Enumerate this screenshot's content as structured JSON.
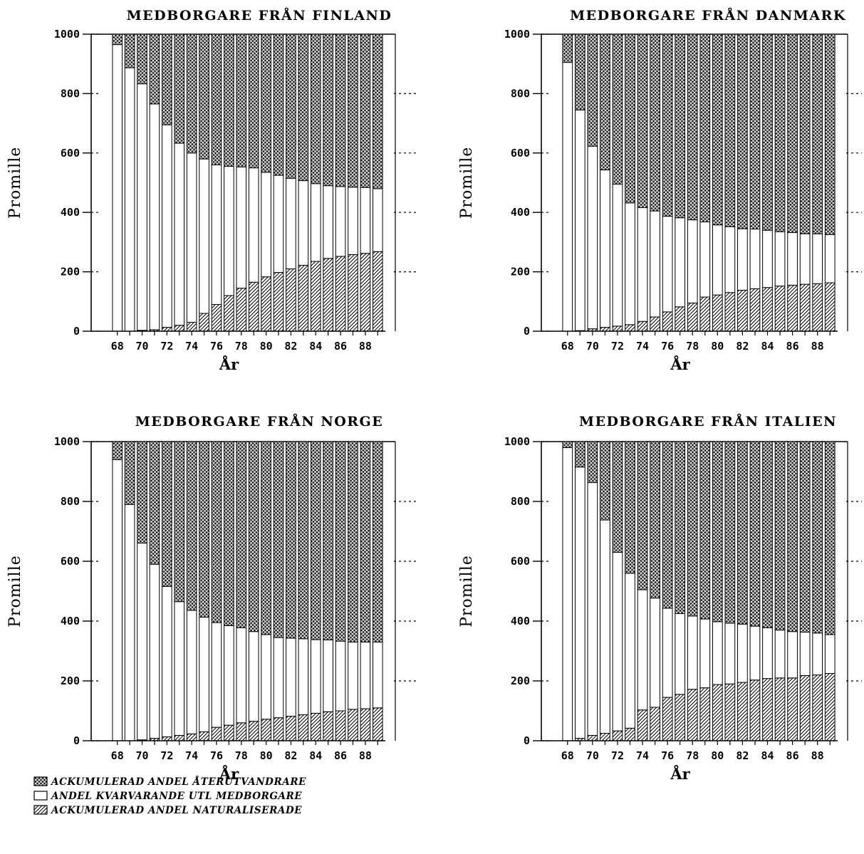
{
  "legend": {
    "items": [
      {
        "key": "returned",
        "label": "ACKUMULERAD ANDEL ÅTERUTVANDRARE",
        "pattern": "crosshatch"
      },
      {
        "key": "remaining",
        "label": "ANDEL KVARVARANDE UTL MEDBORGARE",
        "pattern": "white"
      },
      {
        "key": "naturalized",
        "label": "ACKUMULERAD ANDEL NATURALISERADE",
        "pattern": "diagonal"
      }
    ]
  },
  "chart_data": [
    {
      "type": "bar",
      "stacked": true,
      "title": "MEDBORGARE FRÅN FINLAND",
      "xlabel": "År",
      "ylabel": "Promille",
      "ylim": [
        0,
        1000
      ],
      "yticks": [
        0,
        200,
        400,
        600,
        800,
        1000
      ],
      "x": [
        68,
        69,
        70,
        71,
        72,
        73,
        74,
        75,
        76,
        77,
        78,
        79,
        80,
        81,
        82,
        83,
        84,
        85,
        86,
        87,
        88,
        89
      ],
      "xtick_labels": [
        "68",
        "70",
        "72",
        "74",
        "76",
        "78",
        "80",
        "82",
        "84",
        "86",
        "88"
      ],
      "series": [
        {
          "name": "ACKUMULERAD ANDEL NATURALISERADE",
          "values": [
            0,
            0,
            3,
            5,
            13,
            20,
            30,
            60,
            90,
            120,
            145,
            165,
            183,
            198,
            210,
            222,
            235,
            245,
            252,
            258,
            262,
            268
          ]
        },
        {
          "name": "ANDEL KVARVARANDE UTL MEDBORGARE",
          "values": [
            965,
            887,
            830,
            760,
            682,
            613,
            570,
            520,
            470,
            435,
            408,
            385,
            352,
            327,
            305,
            285,
            262,
            245,
            235,
            227,
            222,
            212
          ]
        },
        {
          "name": "ACKUMULERAD ANDEL ÅTERUTVANDRARE",
          "values": [
            35,
            113,
            167,
            235,
            305,
            367,
            400,
            420,
            440,
            445,
            447,
            450,
            465,
            475,
            485,
            493,
            503,
            510,
            513,
            515,
            516,
            520
          ]
        }
      ]
    },
    {
      "type": "bar",
      "stacked": true,
      "title": "MEDBORGARE FRÅN DANMARK",
      "xlabel": "År",
      "ylabel": "Promille",
      "ylim": [
        0,
        1000
      ],
      "yticks": [
        0,
        200,
        400,
        600,
        800,
        1000
      ],
      "x": [
        68,
        69,
        70,
        71,
        72,
        73,
        74,
        75,
        76,
        77,
        78,
        79,
        80,
        81,
        82,
        83,
        84,
        85,
        86,
        87,
        88,
        89
      ],
      "xtick_labels": [
        "68",
        "70",
        "72",
        "74",
        "76",
        "78",
        "80",
        "82",
        "84",
        "86",
        "88"
      ],
      "series": [
        {
          "name": "ACKUMULERAD ANDEL NATURALISERADE",
          "values": [
            0,
            2,
            8,
            13,
            17,
            22,
            33,
            48,
            65,
            82,
            95,
            115,
            122,
            130,
            138,
            143,
            147,
            152,
            155,
            158,
            160,
            163
          ]
        },
        {
          "name": "ANDEL KVARVARANDE UTL MEDBORGARE",
          "values": [
            905,
            743,
            615,
            530,
            478,
            410,
            383,
            357,
            322,
            300,
            280,
            253,
            236,
            222,
            207,
            201,
            193,
            183,
            177,
            170,
            168,
            162
          ]
        },
        {
          "name": "ACKUMULERAD ANDEL ÅTERUTVANDRARE",
          "values": [
            95,
            255,
            377,
            457,
            505,
            568,
            584,
            595,
            613,
            618,
            625,
            632,
            642,
            648,
            655,
            656,
            660,
            665,
            668,
            672,
            672,
            675
          ]
        }
      ]
    },
    {
      "type": "bar",
      "stacked": true,
      "title": "MEDBORGARE FRÅN NORGE",
      "xlabel": "År",
      "ylabel": "Promille",
      "ylim": [
        0,
        1000
      ],
      "yticks": [
        0,
        200,
        400,
        600,
        800,
        1000
      ],
      "x": [
        68,
        69,
        70,
        71,
        72,
        73,
        74,
        75,
        76,
        77,
        78,
        79,
        80,
        81,
        82,
        83,
        84,
        85,
        86,
        87,
        88,
        89
      ],
      "xtick_labels": [
        "68",
        "70",
        "72",
        "74",
        "76",
        "78",
        "80",
        "82",
        "84",
        "86",
        "88"
      ],
      "series": [
        {
          "name": "ACKUMULERAD ANDEL NATURALISERADE",
          "values": [
            0,
            0,
            3,
            8,
            13,
            18,
            23,
            30,
            45,
            52,
            60,
            65,
            72,
            77,
            82,
            87,
            92,
            97,
            100,
            105,
            107,
            110
          ]
        },
        {
          "name": "ANDEL KVARVARANDE UTL MEDBORGARE",
          "values": [
            940,
            790,
            658,
            582,
            503,
            447,
            413,
            383,
            350,
            333,
            318,
            300,
            283,
            268,
            261,
            254,
            246,
            240,
            233,
            225,
            223,
            220
          ]
        },
        {
          "name": "ACKUMULERAD ANDEL ÅTERUTVANDRARE",
          "values": [
            60,
            210,
            339,
            410,
            484,
            535,
            564,
            587,
            605,
            615,
            622,
            635,
            645,
            655,
            657,
            659,
            662,
            663,
            667,
            670,
            670,
            670
          ]
        }
      ]
    },
    {
      "type": "bar",
      "stacked": true,
      "title": "MEDBORGARE FRÅN ITALIEN",
      "xlabel": "År",
      "ylabel": "Promille",
      "ylim": [
        0,
        1000
      ],
      "yticks": [
        0,
        200,
        400,
        600,
        800,
        1000
      ],
      "x": [
        68,
        69,
        70,
        71,
        72,
        73,
        74,
        75,
        76,
        77,
        78,
        79,
        80,
        81,
        82,
        83,
        84,
        85,
        86,
        87,
        88,
        89
      ],
      "xtick_labels": [
        "68",
        "70",
        "72",
        "74",
        "76",
        "78",
        "80",
        "82",
        "84",
        "86",
        "88"
      ],
      "series": [
        {
          "name": "ACKUMULERAD ANDEL NATURALISERADE",
          "values": [
            0,
            8,
            18,
            25,
            33,
            42,
            103,
            112,
            145,
            155,
            172,
            177,
            188,
            190,
            195,
            203,
            208,
            210,
            210,
            218,
            220,
            225
          ]
        },
        {
          "name": "ANDEL KVARVARANDE UTL MEDBORGARE",
          "values": [
            980,
            907,
            845,
            713,
            597,
            518,
            402,
            365,
            298,
            270,
            245,
            230,
            210,
            203,
            195,
            180,
            170,
            160,
            155,
            145,
            140,
            130
          ]
        },
        {
          "name": "ACKUMULERAD ANDEL ÅTERUTVANDRARE",
          "values": [
            20,
            85,
            137,
            262,
            370,
            440,
            495,
            523,
            557,
            575,
            583,
            593,
            602,
            607,
            610,
            617,
            622,
            630,
            635,
            637,
            640,
            645
          ]
        }
      ]
    }
  ]
}
